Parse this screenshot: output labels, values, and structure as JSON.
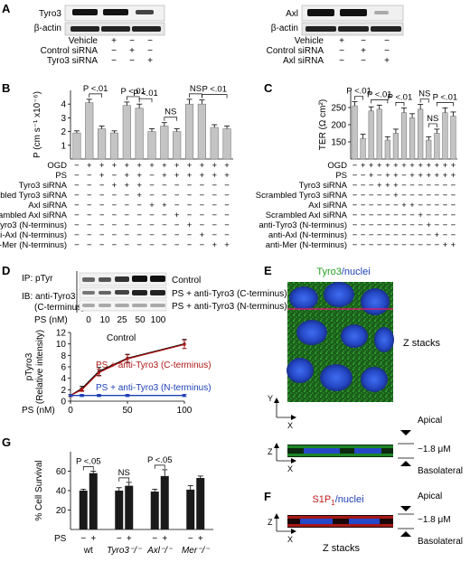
{
  "panels": {
    "a": {
      "letter": "A",
      "left": {
        "labels": [
          "Tyro3",
          "β-actin"
        ],
        "rows": [
          {
            "label": "Vehicle",
            "marks": [
              "+",
              "−",
              "−"
            ]
          },
          {
            "label": "Control siRNA",
            "marks": [
              "−",
              "+",
              "−"
            ]
          },
          {
            "label": "Tyro3 siRNA",
            "marks": [
              "−",
              "−",
              "+"
            ]
          }
        ]
      },
      "right": {
        "labels": [
          "Axl",
          "β-actin"
        ],
        "rows": [
          {
            "label": "Vehicle",
            "marks": [
              "+",
              "−",
              "−"
            ]
          },
          {
            "label": "Control siRNA",
            "marks": [
              "−",
              "+",
              "−"
            ]
          },
          {
            "label": "Axl siRNA",
            "marks": [
              "−",
              "−",
              "+"
            ]
          }
        ]
      }
    },
    "b": {
      "letter": "B"
    },
    "c": {
      "letter": "C"
    },
    "d": {
      "letter": "D",
      "ip": "IP: pTyr",
      "ib": "IB:  anti-Tyro3",
      "ib2": "(C-terminus)",
      "blot_labels": [
        "Control",
        "PS + anti-Tyro3 (C-terminus)",
        "PS + anti-Tyro3 (N-terminus)"
      ],
      "ps_label": "PS (nM)",
      "ps_ticks": [
        "0",
        "10",
        "25",
        "50",
        "100"
      ]
    },
    "e": {
      "letter": "E",
      "title_a": "Tyro3",
      "title_b": "/nuclei",
      "zstacks": "Z stacks",
      "apical": "Apical",
      "basolateral": "Basolateral",
      "thickness": "~1.8 μM",
      "axis_y": "Y",
      "axis_x": "X",
      "axis_z": "Z"
    },
    "f": {
      "letter": "F",
      "title_a": "S1P",
      "title_sub": "1",
      "title_b": "/nuclei",
      "zstacks": "Z stacks",
      "apical": "Apical",
      "basolateral": "Basolateral",
      "thickness": "~1.8 μM",
      "axis_z": "Z",
      "axis_x": "X"
    },
    "g": {
      "letter": "G"
    }
  },
  "chart_data": [
    {
      "panel": "B",
      "type": "bar",
      "ylabel": "P (cm s⁻¹ x10⁻⁶)",
      "ylim": [
        0,
        5
      ],
      "yticks": [
        1,
        2,
        3,
        4
      ],
      "values": [
        1.9,
        4.1,
        2.2,
        1.9,
        3.9,
        3.7,
        2.0,
        2.4,
        2.0,
        4.0,
        4.0,
        2.3,
        2.2
      ],
      "errors": [
        0.15,
        0.25,
        0.2,
        0.15,
        0.25,
        0.3,
        0.2,
        0.25,
        0.2,
        0.35,
        0.3,
        0.2,
        0.2
      ],
      "annotations": [
        {
          "text": "P <.01",
          "from": 1,
          "to": 2
        },
        {
          "text": "P <.01",
          "from": 4,
          "to": 5
        },
        {
          "text": "P <.01",
          "from": 5,
          "to": 6
        },
        {
          "text": "NS",
          "from": 7,
          "to": 8
        },
        {
          "text": "NS",
          "from": 9,
          "to": 10
        },
        {
          "text": "P <.01",
          "from": 10,
          "to": 12
        }
      ],
      "table": [
        {
          "label": "OGD",
          "marks": [
            "−",
            "+",
            "+",
            "+",
            "+",
            "+",
            "+",
            "+",
            "+",
            "+",
            "+",
            "+",
            "+"
          ]
        },
        {
          "label": "PS",
          "marks": [
            "−",
            "−",
            "+",
            "−",
            "+",
            "+",
            "−",
            "+",
            "+",
            "+",
            "+",
            "+",
            "+"
          ]
        },
        {
          "label": "Tyro3 siRNA",
          "marks": [
            "−",
            "−",
            "−",
            "+",
            "+",
            "+",
            "−",
            "−",
            "−",
            "−",
            "−",
            "−",
            "−"
          ]
        },
        {
          "label": "Scrambled Tyro3 siRNA",
          "marks": [
            "−",
            "−",
            "−",
            "−",
            "−",
            "+",
            "−",
            "−",
            "−",
            "−",
            "−",
            "−",
            "−"
          ]
        },
        {
          "label": "Axl siRNA",
          "marks": [
            "−",
            "−",
            "−",
            "−",
            "−",
            "−",
            "+",
            "+",
            "−",
            "−",
            "−",
            "−",
            "−"
          ]
        },
        {
          "label": "Scrambled Axl siRNA",
          "marks": [
            "−",
            "−",
            "−",
            "−",
            "−",
            "−",
            "−",
            "−",
            "+",
            "−",
            "−",
            "−",
            "−"
          ]
        },
        {
          "label": "anti-Tyro3 (N-terminus)",
          "marks": [
            "−",
            "−",
            "−",
            "−",
            "−",
            "−",
            "−",
            "−",
            "−",
            "+",
            "−",
            "−",
            "−"
          ]
        },
        {
          "label": "anti-Axl (N-terminus)",
          "marks": [
            "−",
            "−",
            "−",
            "−",
            "−",
            "−",
            "−",
            "−",
            "−",
            "−",
            "+",
            "−",
            "−"
          ]
        },
        {
          "label": "anti-Mer (N-terminus)",
          "marks": [
            "−",
            "−",
            "−",
            "−",
            "−",
            "−",
            "−",
            "−",
            "−",
            "−",
            "−",
            "+",
            "+"
          ]
        }
      ]
    },
    {
      "panel": "C",
      "type": "bar",
      "ylabel": "TER (Ω cm²)",
      "ylim": [
        100,
        300
      ],
      "yticks": [
        150,
        200,
        250
      ],
      "values": [
        255,
        160,
        240,
        245,
        155,
        175,
        235,
        220,
        245,
        155,
        175,
        235,
        225
      ],
      "errors": [
        12,
        12,
        12,
        12,
        10,
        12,
        14,
        12,
        14,
        10,
        12,
        14,
        12
      ],
      "annotations": [
        {
          "text": "P <.01",
          "from": 0,
          "to": 1
        },
        {
          "text": "P <.01",
          "from": 2,
          "to": 4
        },
        {
          "text": "P <.01",
          "from": 5,
          "to": 6
        },
        {
          "text": "NS",
          "from": 8,
          "to": 9
        },
        {
          "text": "NS",
          "from": 9,
          "to": 10
        },
        {
          "text": "P <.01",
          "from": 10,
          "to": 12
        }
      ],
      "table": [
        {
          "label": "OGD",
          "marks": [
            "−",
            "+",
            "+",
            "+",
            "+",
            "+",
            "+",
            "+",
            "+",
            "+",
            "+",
            "+",
            "+"
          ]
        },
        {
          "label": "PS",
          "marks": [
            "−",
            "−",
            "+",
            "−",
            "+",
            "+",
            "−",
            "+",
            "+",
            "+",
            "+",
            "+",
            "+"
          ]
        },
        {
          "label": "Tyro3 siRNA",
          "marks": [
            "−",
            "−",
            "−",
            "+",
            "+",
            "+",
            "−",
            "−",
            "−",
            "−",
            "−",
            "−",
            "−"
          ]
        },
        {
          "label": "Scrambled Tyro3 siRNA",
          "marks": [
            "−",
            "−",
            "−",
            "−",
            "−",
            "+",
            "−",
            "−",
            "−",
            "−",
            "−",
            "−",
            "−"
          ]
        },
        {
          "label": "Axl siRNA",
          "marks": [
            "−",
            "−",
            "−",
            "−",
            "−",
            "−",
            "+",
            "+",
            "−",
            "−",
            "−",
            "−",
            "−"
          ]
        },
        {
          "label": "Scrambled Axl siRNA",
          "marks": [
            "−",
            "−",
            "−",
            "−",
            "−",
            "−",
            "−",
            "−",
            "+",
            "−",
            "−",
            "−",
            "−"
          ]
        },
        {
          "label": "anti-Tyro3 (N-terminus)",
          "marks": [
            "−",
            "−",
            "−",
            "−",
            "−",
            "−",
            "−",
            "−",
            "−",
            "+",
            "−",
            "−",
            "−"
          ]
        },
        {
          "label": "anti-Axl (N-terminus)",
          "marks": [
            "−",
            "−",
            "−",
            "−",
            "−",
            "−",
            "−",
            "−",
            "−",
            "−",
            "+",
            "−",
            "−"
          ]
        },
        {
          "label": "anti-Mer (N-terminus)",
          "marks": [
            "−",
            "−",
            "−",
            "−",
            "−",
            "−",
            "−",
            "−",
            "−",
            "−",
            "−",
            "+",
            "+"
          ]
        }
      ]
    },
    {
      "panel": "D",
      "type": "line",
      "ylabel": "pTyro3\n(Relative intensity)",
      "xlabel": "PS (nM)",
      "xlim": [
        0,
        100
      ],
      "ylim": [
        0,
        12
      ],
      "xticks": [
        0,
        50,
        100
      ],
      "yticks": [
        0,
        2,
        4,
        6,
        8,
        10,
        12
      ],
      "x": [
        0,
        10,
        25,
        50,
        100
      ],
      "series": [
        {
          "name": "Control",
          "color": "#000000",
          "values": [
            1.0,
            2.2,
            5.2,
            7.5,
            10.0
          ],
          "errors": [
            0.2,
            0.4,
            0.7,
            0.7,
            0.8
          ]
        },
        {
          "name": "PS + anti-Tyro3 (C-terminus)",
          "color": "#b01515",
          "values": [
            1.0,
            2.0,
            5.0,
            7.4,
            9.9
          ],
          "errors": [
            0.2,
            0.3,
            0.6,
            0.7,
            0.7
          ]
        },
        {
          "name": "PS + anti-Tyro3 (N-terminus)",
          "color": "#1d3fb5",
          "values": [
            1.0,
            1.0,
            1.0,
            1.0,
            1.0
          ],
          "errors": [
            0.15,
            0.2,
            0.2,
            0.2,
            0.2
          ]
        }
      ]
    },
    {
      "panel": "G",
      "type": "bar",
      "ylabel": "% Cell Survival",
      "ylim": [
        0,
        80
      ],
      "yticks": [
        20,
        40,
        60
      ],
      "groups": [
        "wt",
        "Tyro3⁻/⁻",
        "Axl⁻/⁻",
        "Mer⁻/⁻"
      ],
      "group_italic": [
        false,
        true,
        true,
        true
      ],
      "ps_label": "PS",
      "ps_marks": [
        "−",
        "+"
      ],
      "values": [
        40,
        58,
        40,
        45,
        39,
        55,
        41,
        53
      ],
      "errors": [
        1.5,
        2.0,
        3.0,
        3.5,
        2.5,
        6.5,
        4.0,
        2.0
      ],
      "annotations": [
        {
          "text": "P <.05",
          "group": 0
        },
        {
          "text": "NS",
          "group": 1
        },
        {
          "text": "P <.05",
          "group": 2
        }
      ]
    }
  ]
}
